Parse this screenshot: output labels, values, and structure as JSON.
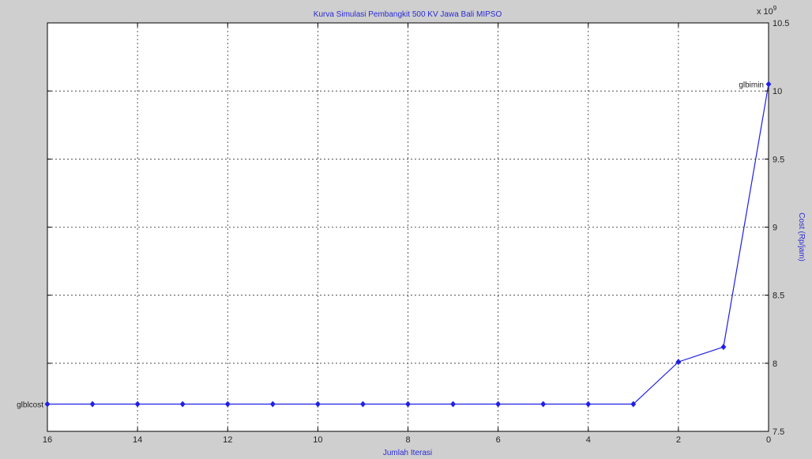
{
  "chart_data": {
    "type": "line",
    "title": "Kurva Simulasi Pembangkit 500 KV Jawa Bali MIPSO",
    "xlabel": "Jumlah Iterasi",
    "ylabel": "Cost (Rp/jam)",
    "y_exponent_label": "x 10",
    "y_exponent_power": "9",
    "xlim": [
      0,
      16
    ],
    "ylim": [
      7.5,
      10.5
    ],
    "x_axis_reversed": true,
    "y_axis_side": "right",
    "grid": true,
    "x_ticks": [
      "0",
      "2",
      "4",
      "6",
      "8",
      "10",
      "12",
      "14",
      "16"
    ],
    "y_ticks": [
      "7.5",
      "8",
      "8.5",
      "9",
      "9.5",
      "10",
      "10.5"
    ],
    "line_color": "#1f1fe6",
    "series": [
      {
        "x": [
          0,
          1,
          2,
          3,
          4,
          5,
          6,
          7,
          8,
          9,
          10,
          11,
          12,
          13,
          14,
          15,
          16
        ],
        "y": [
          10.05,
          8.12,
          8.01,
          7.7,
          7.7,
          7.7,
          7.7,
          7.7,
          7.7,
          7.7,
          7.7,
          7.7,
          7.7,
          7.7,
          7.7,
          7.7,
          7.7
        ]
      }
    ],
    "annotations": [
      {
        "text": "glbimin",
        "x": 0,
        "y": 10.05
      },
      {
        "text": "glblcost",
        "x": 16,
        "y": 7.7
      }
    ]
  }
}
